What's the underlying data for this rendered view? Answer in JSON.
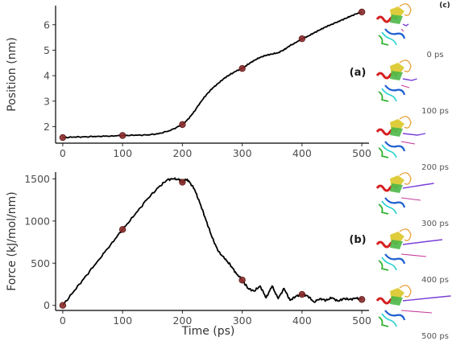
{
  "chart_data": [
    {
      "type": "line",
      "panel_label": "(a)",
      "xlabel": "",
      "ylabel": "Position (nm)",
      "xlim": [
        -12,
        512
      ],
      "ylim": [
        1.35,
        6.75
      ],
      "x_ticks": [
        "0",
        "100",
        "200",
        "300",
        "400",
        "500"
      ],
      "y_ticks": [
        "2",
        "3",
        "4",
        "5",
        "6"
      ],
      "x_tick_values": [
        0,
        100,
        200,
        300,
        400,
        500
      ],
      "y_tick_values": [
        2,
        3,
        4,
        5,
        6
      ],
      "line": {
        "x": [
          0,
          20,
          40,
          60,
          80,
          100,
          120,
          140,
          160,
          180,
          200,
          210,
          220,
          230,
          240,
          250,
          260,
          270,
          280,
          290,
          300,
          310,
          320,
          330,
          340,
          350,
          360,
          370,
          380,
          390,
          400,
          410,
          420,
          430,
          440,
          450,
          460,
          470,
          480,
          490,
          500
        ],
        "y": [
          1.57,
          1.59,
          1.6,
          1.62,
          1.63,
          1.65,
          1.66,
          1.67,
          1.72,
          1.85,
          2.08,
          2.3,
          2.6,
          2.95,
          3.25,
          3.5,
          3.7,
          3.9,
          4.05,
          4.18,
          4.28,
          4.45,
          4.6,
          4.72,
          4.8,
          4.85,
          4.9,
          5.02,
          5.18,
          5.3,
          5.45,
          5.55,
          5.68,
          5.8,
          5.92,
          6.02,
          6.12,
          6.22,
          6.32,
          6.42,
          6.5
        ]
      },
      "markers": {
        "x": [
          0,
          100,
          200,
          300,
          400,
          500
        ],
        "y": [
          1.57,
          1.65,
          2.08,
          4.28,
          5.45,
          6.5
        ]
      }
    },
    {
      "type": "line",
      "panel_label": "(b)",
      "xlabel": "Time (ps)",
      "ylabel": "Force (kJ/mol/nm)",
      "xlim": [
        -12,
        512
      ],
      "ylim": [
        -60,
        1580
      ],
      "x_ticks": [
        "0",
        "100",
        "200",
        "300",
        "400",
        "500"
      ],
      "y_ticks": [
        "0",
        "500",
        "1000",
        "1500"
      ],
      "x_tick_values": [
        0,
        100,
        200,
        300,
        400,
        500
      ],
      "y_tick_values": [
        0,
        500,
        1000,
        1500
      ],
      "line": {
        "x": [
          0,
          20,
          40,
          60,
          80,
          100,
          120,
          140,
          160,
          175,
          185,
          195,
          200,
          205,
          210,
          220,
          230,
          240,
          250,
          260,
          270,
          280,
          290,
          300,
          310,
          320,
          330,
          340,
          350,
          360,
          370,
          380,
          390,
          400,
          410,
          420,
          430,
          440,
          450,
          460,
          470,
          480,
          490,
          500
        ],
        "y": [
          0,
          180,
          360,
          540,
          720,
          900,
          1070,
          1250,
          1400,
          1490,
          1500,
          1490,
          1460,
          1495,
          1480,
          1380,
          1200,
          1000,
          800,
          640,
          560,
          480,
          380,
          300,
          200,
          170,
          230,
          90,
          230,
          80,
          200,
          60,
          110,
          130,
          110,
          40,
          80,
          60,
          90,
          50,
          80,
          70,
          85,
          70
        ]
      },
      "markers": {
        "x": [
          0,
          100,
          200,
          300,
          400,
          500
        ],
        "y": [
          0,
          900,
          1460,
          300,
          130,
          70
        ]
      }
    }
  ],
  "snapshots": {
    "panel_label": "(c)",
    "labels": [
      "0 ps",
      "100 ps",
      "200 ps",
      "300 ps",
      "400 ps",
      "500 ps"
    ]
  },
  "colors": {
    "line": "#000000",
    "marker_fill": "#8b2b2b",
    "marker_edge": "#5a1515",
    "axis": "#000000"
  }
}
